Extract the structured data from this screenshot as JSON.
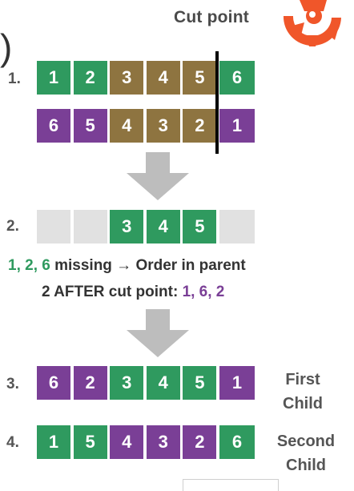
{
  "header": {
    "cut_point_label": "Cut point",
    "paren": ")"
  },
  "colors": {
    "green": "#2f9a5f",
    "brown": "#8e7440",
    "purple": "#7a3f96",
    "empty": "#e1e1e1",
    "arrow": "#bdbdbd",
    "logo": "#f0562a"
  },
  "rows": [
    {
      "label": "1.",
      "cells": [
        {
          "v": "1",
          "c": "g"
        },
        {
          "v": "2",
          "c": "g"
        },
        {
          "v": "3",
          "c": "b"
        },
        {
          "v": "4",
          "c": "b"
        },
        {
          "v": "5",
          "c": "b"
        },
        {
          "v": "6",
          "c": "g"
        }
      ]
    },
    {
      "label": "",
      "cells": [
        {
          "v": "6",
          "c": "p"
        },
        {
          "v": "5",
          "c": "p"
        },
        {
          "v": "4",
          "c": "b"
        },
        {
          "v": "3",
          "c": "b"
        },
        {
          "v": "2",
          "c": "b"
        },
        {
          "v": "1",
          "c": "p"
        }
      ]
    },
    {
      "label": "2.",
      "cells": [
        {
          "v": "",
          "c": "e"
        },
        {
          "v": "",
          "c": "e"
        },
        {
          "v": "3",
          "c": "g"
        },
        {
          "v": "4",
          "c": "g"
        },
        {
          "v": "5",
          "c": "g"
        },
        {
          "v": "",
          "c": "e"
        }
      ]
    },
    {
      "label": "3.",
      "cells": [
        {
          "v": "6",
          "c": "p"
        },
        {
          "v": "2",
          "c": "p"
        },
        {
          "v": "3",
          "c": "g"
        },
        {
          "v": "4",
          "c": "g"
        },
        {
          "v": "5",
          "c": "g"
        },
        {
          "v": "1",
          "c": "p"
        }
      ]
    },
    {
      "label": "4.",
      "cells": [
        {
          "v": "1",
          "c": "g"
        },
        {
          "v": "5",
          "c": "g"
        },
        {
          "v": "4",
          "c": "p"
        },
        {
          "v": "3",
          "c": "p"
        },
        {
          "v": "2",
          "c": "p"
        },
        {
          "v": "6",
          "c": "g"
        }
      ]
    }
  ],
  "note": {
    "missing": "1, 2, 6",
    "line1_rest": " missing → Order in parent",
    "line2_prefix": "2 AFTER cut point: ",
    "order": "1, 6, 2"
  },
  "children": {
    "first_line1": "First",
    "first_line2": "Child",
    "second_line1": "Second",
    "second_line2": "Child"
  }
}
